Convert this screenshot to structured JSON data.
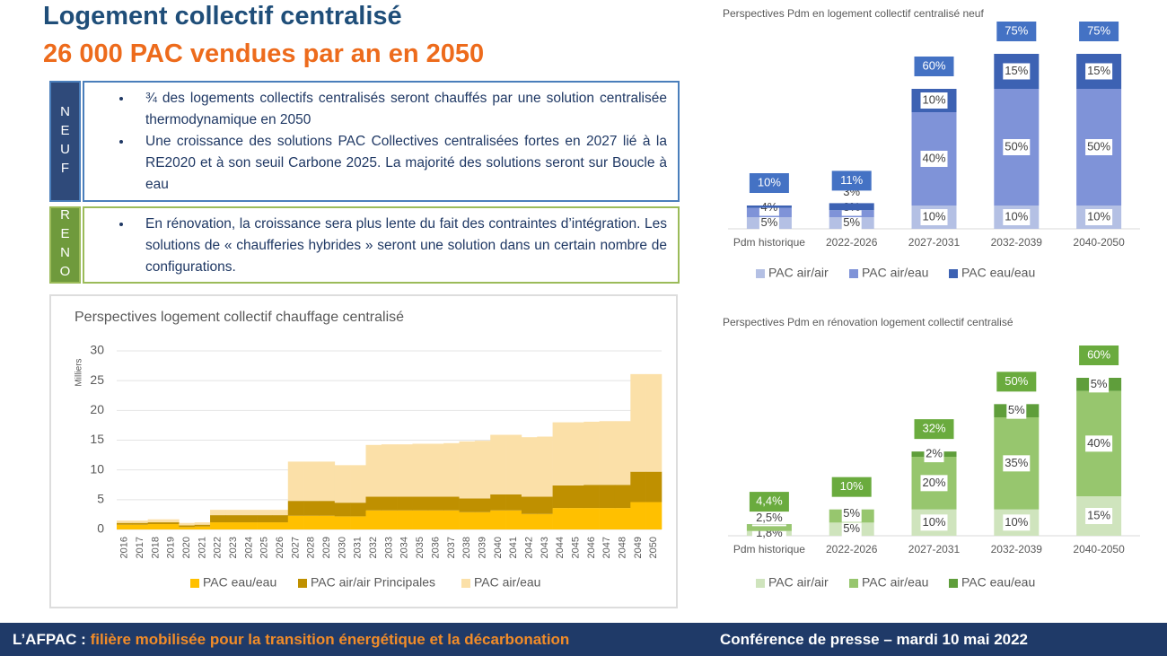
{
  "header": {
    "title": "Logement collectif centralisé",
    "subtitle": "26 000 PAC vendues par an en 2050"
  },
  "neuf": {
    "label": "NEUF",
    "bullets": [
      "¾ des logements collectifs centralisés seront chauffés par une solution centralisée thermodynamique en 2050",
      "Une croissance des solutions PAC Collectives centralisées fortes en 2027 lié à la RE2020 et à son seuil Carbone 2025. La majorité des solutions seront sur Boucle à eau"
    ]
  },
  "reno": {
    "label": "RENO",
    "bullets": [
      "En rénovation, la croissance sera plus lente du fait des contraintes d’intégration. Les solutions de « chaufferies hybrides » seront une solution dans un certain nombre de configurations."
    ]
  },
  "footer": {
    "left_bold": "L’AFPAC :",
    "left_highlight": "filière mobilisée pour la transition énergétique et la décarbonation",
    "right": "Conférence de presse – mardi 10 mai 2022"
  },
  "chart_data": [
    {
      "type": "area",
      "title": "Perspectives logement collectif chauffage centralisé",
      "y_label": "Milliers",
      "categories": [
        "2016",
        "2017",
        "2018",
        "2019",
        "2020",
        "2021",
        "2022",
        "2023",
        "2024",
        "2025",
        "2026",
        "2027",
        "2028",
        "2029",
        "2030",
        "2031",
        "2032",
        "2033",
        "2034",
        "2035",
        "2036",
        "2037",
        "2038",
        "2039",
        "2040",
        "2041",
        "2042",
        "2043",
        "2044",
        "2045",
        "2046",
        "2047",
        "2048",
        "2049",
        "2050"
      ],
      "series": [
        {
          "name": "PAC eau/eau",
          "color": "#ffc000",
          "values": [
            0.8,
            0.8,
            0.9,
            0.9,
            0.4,
            0.5,
            1.2,
            1.2,
            1.2,
            1.2,
            1.2,
            2.3,
            2.3,
            2.3,
            2.2,
            2.2,
            3.2,
            3.2,
            3.2,
            3.2,
            3.2,
            3.2,
            2.9,
            2.9,
            3.2,
            3.2,
            2.6,
            2.6,
            3.6,
            3.6,
            3.6,
            3.6,
            3.6,
            4.6,
            4.6
          ]
        },
        {
          "name": "PAC air/air Principales",
          "color": "#bf9000",
          "values": [
            0.3,
            0.3,
            0.3,
            0.3,
            0.3,
            0.3,
            1.2,
            1.2,
            1.2,
            1.2,
            1.2,
            2.5,
            2.5,
            2.5,
            2.3,
            2.3,
            2.3,
            2.3,
            2.3,
            2.3,
            2.3,
            2.3,
            2.3,
            2.3,
            2.7,
            2.7,
            2.9,
            2.9,
            3.8,
            3.8,
            3.9,
            3.9,
            3.9,
            5.1,
            5.1
          ]
        },
        {
          "name": "PAC air/eau",
          "color": "#fbe0a8",
          "values": [
            0.4,
            0.4,
            0.5,
            0.5,
            0.4,
            0.4,
            0.9,
            0.9,
            0.9,
            0.9,
            0.9,
            6.6,
            6.6,
            6.6,
            6.3,
            6.3,
            8.7,
            8.8,
            8.8,
            8.9,
            8.9,
            9.0,
            9.6,
            9.7,
            10.0,
            10.0,
            10.0,
            10.1,
            10.6,
            10.6,
            10.6,
            10.7,
            10.7,
            16.4,
            16.4
          ]
        }
      ],
      "ylim": [
        0,
        30
      ],
      "yticks": [
        0,
        5,
        10,
        15,
        20,
        25,
        30
      ],
      "grid": true
    },
    {
      "type": "bar",
      "title": "Perspectives Pdm en logement collectif centralisé neuf",
      "categories": [
        "Pdm historique",
        "2022-2026",
        "2027-2031",
        "2032-2039",
        "2040-2050"
      ],
      "series": [
        {
          "name": "PAC air/air",
          "color": "#b4c0e4",
          "values": [
            5,
            5,
            10,
            10,
            10
          ],
          "value_labels": [
            "5%",
            "5%",
            "10%",
            "10%",
            "10%"
          ]
        },
        {
          "name": "PAC air/eau",
          "color": "#7f93d8",
          "values": [
            4,
            3,
            40,
            50,
            50
          ],
          "value_labels": [
            "4%",
            "3%",
            "40%",
            "50%",
            "50%"
          ]
        },
        {
          "name": "PAC eau/eau",
          "color": "#3d62b3",
          "values": [
            1,
            3,
            10,
            15,
            15
          ],
          "value_labels": [
            null,
            "3%",
            "10%",
            "15%",
            "15%"
          ]
        }
      ],
      "totals": [
        10,
        11,
        60,
        75,
        75
      ],
      "total_labels": [
        "10%",
        "11%",
        "60%",
        "75%",
        "75%"
      ],
      "total_color": "#4472c4",
      "ylim": [
        0,
        75
      ]
    },
    {
      "type": "bar",
      "title": "Perspectives Pdm en rénovation logement collectif centralisé",
      "categories": [
        "Pdm historique",
        "2022-2026",
        "2027-2031",
        "2032-2039",
        "2040-2050"
      ],
      "series": [
        {
          "name": "PAC air/air",
          "color": "#cfe4bd",
          "values": [
            1.8,
            5,
            10,
            10,
            15
          ],
          "value_labels": [
            "1,8%",
            "5%",
            "10%",
            "10%",
            "15%"
          ]
        },
        {
          "name": "PAC air/eau",
          "color": "#97c66e",
          "values": [
            2.5,
            5,
            20,
            35,
            40
          ],
          "value_labels": [
            "2,5%",
            "5%",
            "20%",
            "35%",
            "40%"
          ]
        },
        {
          "name": "PAC eau/eau",
          "color": "#5f9e3b",
          "values": [
            0.1,
            0,
            2,
            5,
            5
          ],
          "value_labels": [
            null,
            null,
            "2%",
            "5%",
            "5%"
          ]
        }
      ],
      "totals": [
        4.4,
        10,
        32,
        50,
        60
      ],
      "total_labels": [
        "4,4%",
        "10%",
        "32%",
        "50%",
        "60%"
      ],
      "total_color": "#6aab3e",
      "ylim": [
        0,
        60
      ]
    }
  ]
}
